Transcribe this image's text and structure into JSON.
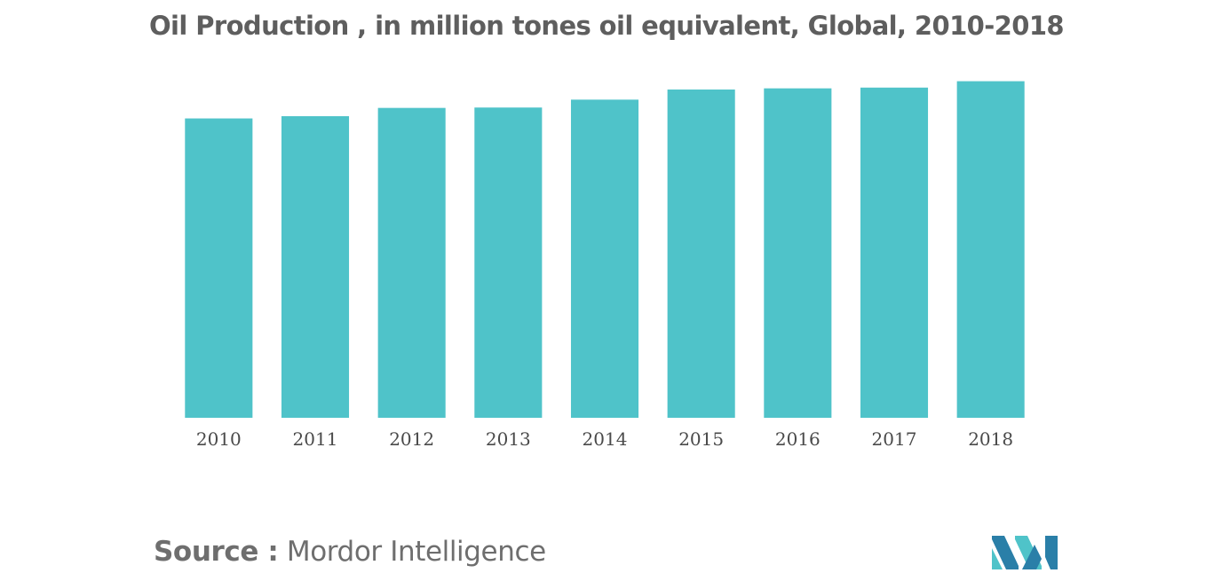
{
  "chart_data": {
    "type": "bar",
    "title": "Oil Production , in million tones oil equivalent, Global, 2010-2018",
    "xlabel": "",
    "ylabel": "",
    "categories": [
      "2010",
      "2011",
      "2012",
      "2013",
      "2014",
      "2015",
      "2016",
      "2017",
      "2018"
    ],
    "values": [
      3980,
      4010,
      4120,
      4125,
      4230,
      4365,
      4380,
      4390,
      4475
    ],
    "ylim": [
      0,
      4800
    ],
    "grid": false,
    "legend": "none",
    "bar_color": "#4fc3c9"
  },
  "source": {
    "label": "Source :",
    "name": "Mordor Intelligence"
  },
  "colors": {
    "title": "#5e5e5e",
    "tick_text": "#4a4a4a",
    "source_text": "#6e6e6e",
    "logo_dark": "#2a7fa8",
    "logo_light": "#4fc3c9"
  },
  "icons": {
    "logo": "mordor-intelligence-logo-icon"
  }
}
